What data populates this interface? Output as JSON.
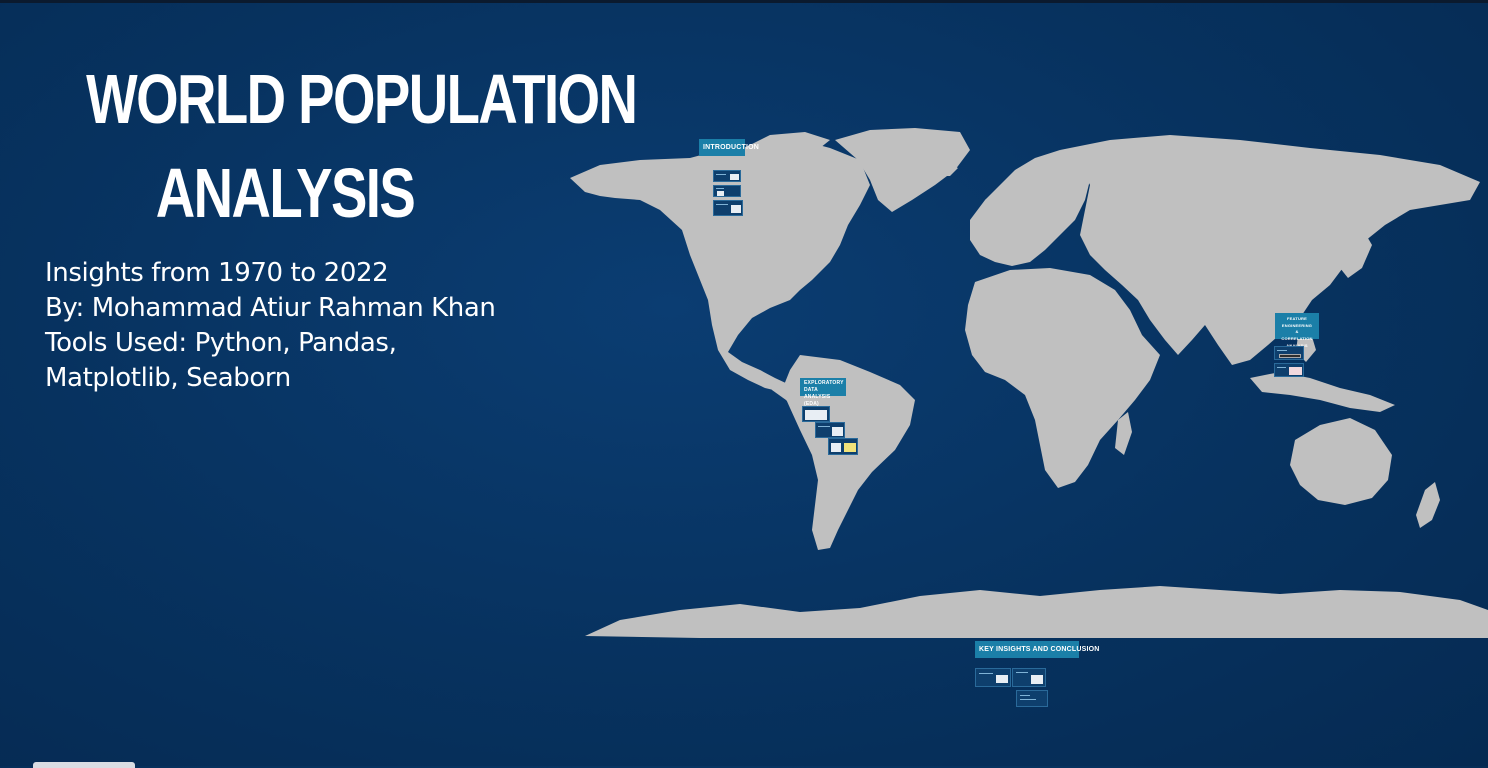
{
  "presentation": {
    "title_lines": [
      "WORLD POPULATION",
      "ANALYSIS"
    ],
    "subtitle_lines": [
      "Insights from 1970 to 2022",
      "By: Mohammad Atiur Rahman Khan",
      "Tools Used: Python, Pandas,",
      "Matplotlib, Seaborn"
    ]
  },
  "frames": {
    "introduction": "INTRODUCTION",
    "eda_lines": [
      "EXPLORATORY DATA",
      "ANALYSIS (EDA)"
    ],
    "feature_lines": [
      "FEATURE ENGINEERING",
      "&",
      "CORRELATION ANALYSIS"
    ],
    "insights": "KEY INSIGHTS AND CONCLUSION"
  },
  "colors": {
    "background": "#07325f",
    "land": "#c0c0c0",
    "frame_label": "#1b7fa8",
    "text": "#ffffff"
  }
}
